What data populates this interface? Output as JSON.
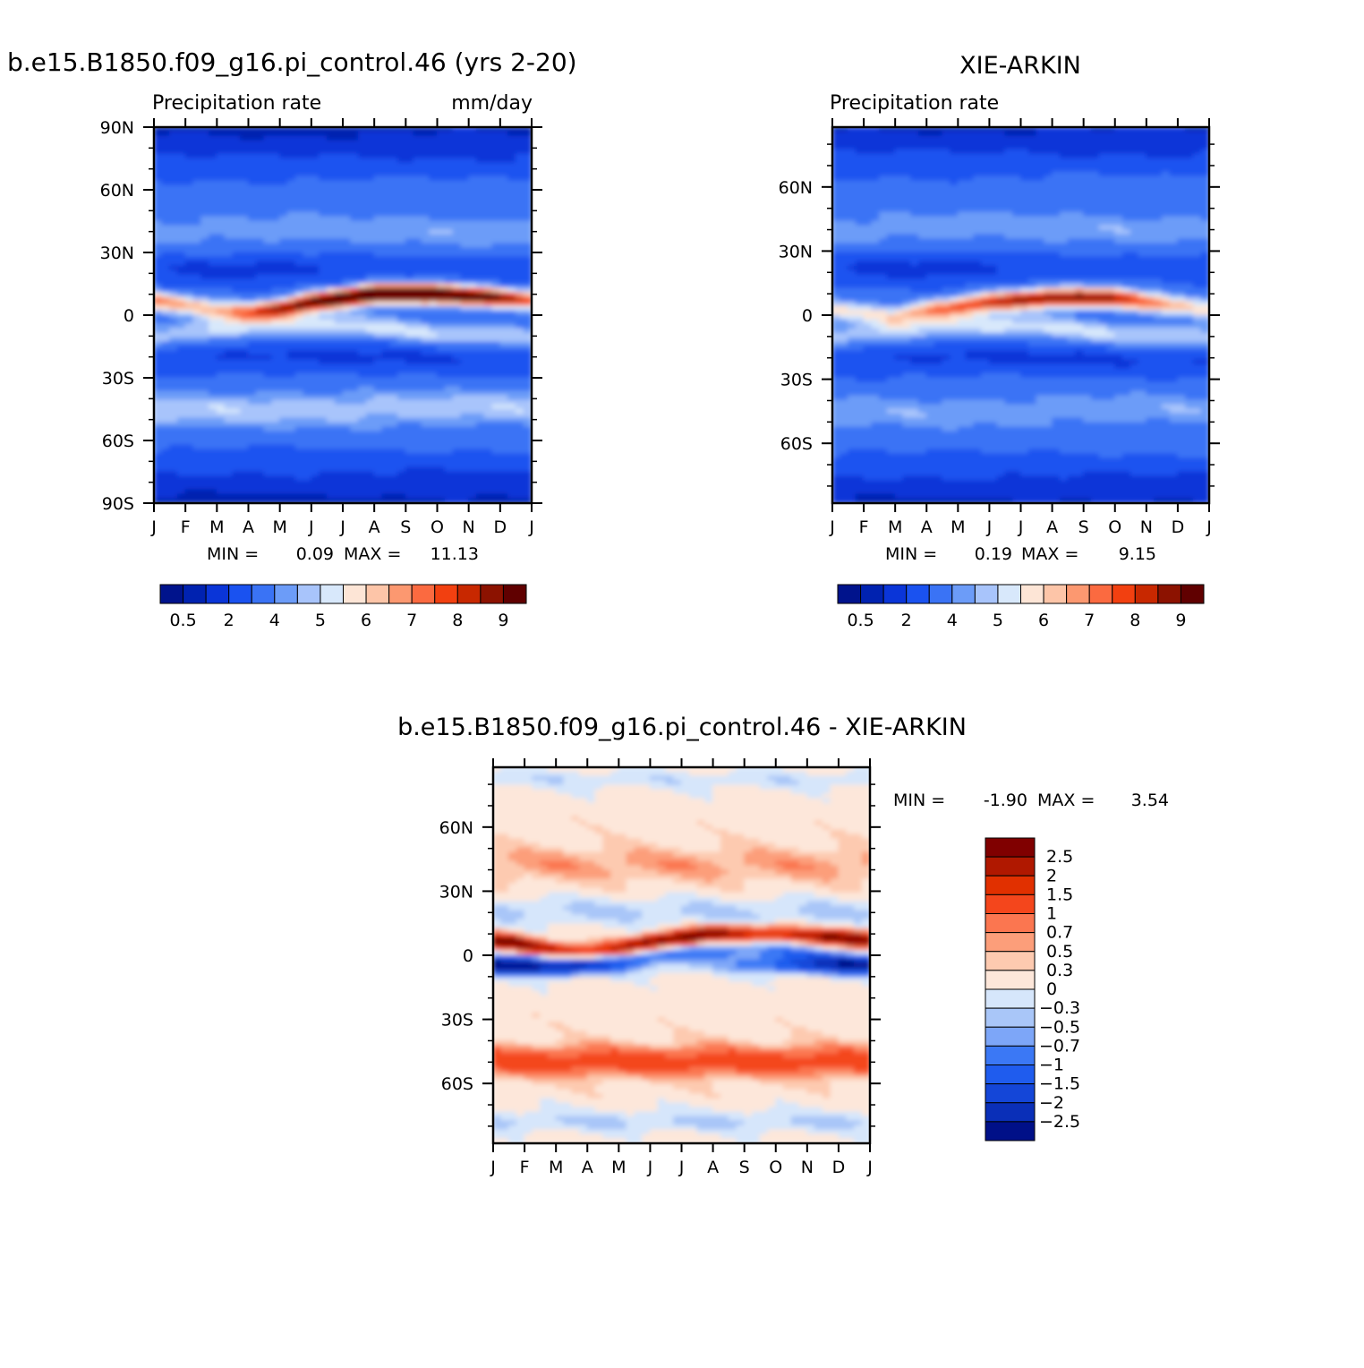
{
  "chart_data": [
    {
      "type": "heatmap",
      "title": "b.e15.B1850.f09_g16.pi_control.46 (yrs 2-20)",
      "subtitle_left": "Precipitation rate",
      "subtitle_right": "mm/day",
      "months": [
        "J",
        "F",
        "M",
        "A",
        "M",
        "J",
        "J",
        "A",
        "S",
        "O",
        "N",
        "D",
        "J"
      ],
      "lat_ticks": [
        {
          "lat": 90,
          "label": "90N"
        },
        {
          "lat": 60,
          "label": "60N"
        },
        {
          "lat": 30,
          "label": "30N"
        },
        {
          "lat": 0,
          "label": "0"
        },
        {
          "lat": -30,
          "label": "30S"
        },
        {
          "lat": -60,
          "label": "60S"
        },
        {
          "lat": -90,
          "label": "90S"
        }
      ],
      "ylim": [
        -90,
        90
      ],
      "min_label": "MIN =",
      "min_value": "0.09",
      "max_label": "MAX =",
      "max_value": "11.13",
      "levels": [
        0.5,
        1,
        2,
        3,
        4,
        4.5,
        5,
        5.5,
        6,
        6.5,
        7,
        7.5,
        8,
        8.5,
        9
      ],
      "cbar_labels": [
        "0.5",
        "2",
        "4",
        "5",
        "6",
        "7",
        "8",
        "9"
      ],
      "itcz": {
        "lat_by_month": [
          7,
          5,
          2,
          1,
          3,
          6,
          8,
          10,
          10,
          10,
          9,
          8,
          7
        ],
        "peak_by_month": [
          7.2,
          6.5,
          6.3,
          7.0,
          8.4,
          9.6,
          10.5,
          11.0,
          11.0,
          10.6,
          10.0,
          9.0,
          7.2
        ]
      }
    },
    {
      "type": "heatmap",
      "title": "XIE-ARKIN",
      "subtitle_left": "Precipitation rate",
      "months": [
        "J",
        "F",
        "M",
        "A",
        "M",
        "J",
        "J",
        "A",
        "S",
        "O",
        "N",
        "D",
        "J"
      ],
      "lat_ticks": [
        {
          "lat": 60,
          "label": "60N"
        },
        {
          "lat": 30,
          "label": "30N"
        },
        {
          "lat": 0,
          "label": "0"
        },
        {
          "lat": -30,
          "label": "30S"
        },
        {
          "lat": -60,
          "label": "60S"
        }
      ],
      "ylim": [
        -88,
        88
      ],
      "min_label": "MIN =",
      "min_value": "0.19",
      "max_label": "MAX =",
      "max_value": "9.15",
      "levels": [
        0.5,
        1,
        2,
        3,
        4,
        4.5,
        5,
        5.5,
        6,
        6.5,
        7,
        7.5,
        8,
        8.5,
        9
      ],
      "cbar_labels": [
        "0.5",
        "2",
        "4",
        "5",
        "6",
        "7",
        "8",
        "9"
      ],
      "itcz": {
        "lat_by_month": [
          2,
          1,
          -1,
          2,
          4,
          6,
          7,
          8,
          8,
          8,
          6,
          4,
          2
        ],
        "peak_by_month": [
          5.6,
          5.4,
          5.6,
          6.5,
          7.4,
          8.2,
          8.8,
          9.1,
          9.0,
          8.5,
          7.6,
          6.4,
          5.6
        ]
      }
    },
    {
      "type": "heatmap",
      "title": "b.e15.B1850.f09_g16.pi_control.46 - XIE-ARKIN",
      "months": [
        "J",
        "F",
        "M",
        "A",
        "M",
        "J",
        "J",
        "A",
        "S",
        "O",
        "N",
        "D",
        "J"
      ],
      "lat_ticks": [
        {
          "lat": 60,
          "label": "60N"
        },
        {
          "lat": 30,
          "label": "30N"
        },
        {
          "lat": 0,
          "label": "0"
        },
        {
          "lat": -30,
          "label": "30S"
        },
        {
          "lat": -60,
          "label": "60S"
        }
      ],
      "ylim": [
        -88,
        88
      ],
      "min_label": "MIN =",
      "min_value": "-1.90",
      "max_label": "MAX =",
      "max_value": "3.54",
      "levels": [
        -2.5,
        -2,
        -1.5,
        -1,
        -0.7,
        -0.5,
        -0.3,
        0,
        0.3,
        0.5,
        0.7,
        1,
        1.5,
        2,
        2.5
      ],
      "cbar_labels": [
        "2.5",
        "2",
        "1.5",
        "1",
        "0.7",
        "0.5",
        "0.3",
        "0",
        "−0.3",
        "−0.5",
        "−0.7",
        "−1",
        "−1.5",
        "−2",
        "−2.5"
      ]
    }
  ],
  "palette": {
    "seq_colors": [
      "#00138c",
      "#0022b0",
      "#0a35d8",
      "#1a52f0",
      "#3a73f5",
      "#6c9cf8",
      "#a8c4fb",
      "#d8e8fb",
      "#fde5d6",
      "#fdc5a8",
      "#fc9870",
      "#fb6a40",
      "#f24010",
      "#c82800",
      "#8c1200",
      "#600000"
    ],
    "diff_colors": [
      "#001088",
      "#0a2fb8",
      "#1446d8",
      "#1f5cee",
      "#3b78f5",
      "#7da6f8",
      "#a9c6f8",
      "#d6e6fb",
      "#fde7da",
      "#fdcab0",
      "#fc9e7a",
      "#fb7650",
      "#f4461c",
      "#e13000",
      "#b01800",
      "#800000"
    ]
  }
}
